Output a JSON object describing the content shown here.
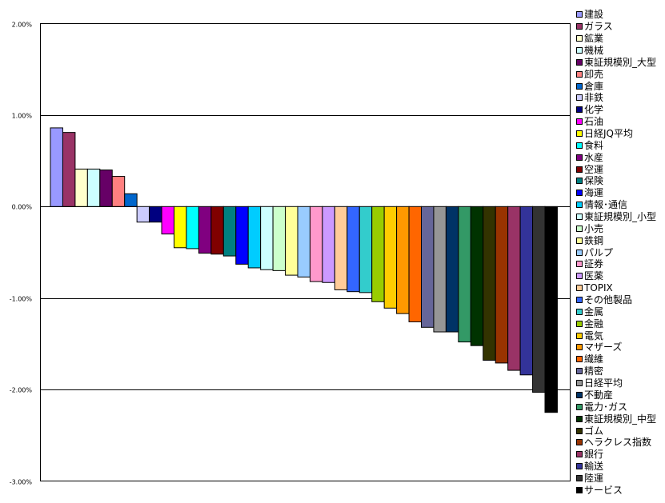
{
  "chart_data": {
    "type": "bar",
    "title": "",
    "xlabel": "",
    "ylabel": "",
    "ylim": [
      -3,
      2
    ],
    "yticks": [
      "2.00%",
      "1.00%",
      "0.00%",
      "-1.00%",
      "-2.00%",
      "-3.00%"
    ],
    "ytick_values": [
      2,
      1,
      0,
      -1,
      -2,
      -3
    ],
    "grid": true,
    "legend_position": "right",
    "categories": [
      "建設",
      "ガラス",
      "鉱業",
      "機械",
      "東証規模別_大型",
      "卸売",
      "倉庫",
      "非鉄",
      "化学",
      "石油",
      "日経JQ平均",
      "食料",
      "水産",
      "空運",
      "保険",
      "海運",
      "情報･通信",
      "東証規模別_小型",
      "小売",
      "鉄鋼",
      "パルプ",
      "証券",
      "医薬",
      "TOPIX",
      "その他製品",
      "金属",
      "金融",
      "電気",
      "マザーズ",
      "繊維",
      "精密",
      "日経平均",
      "不動産",
      "電力･ガス",
      "東証規模別_中型",
      "ゴム",
      "ヘラクレス指数",
      "銀行",
      "輸送",
      "陸運",
      "サービス"
    ],
    "values": [
      0.86,
      0.81,
      0.41,
      0.41,
      0.4,
      0.33,
      0.14,
      -0.17,
      -0.17,
      -0.3,
      -0.45,
      -0.46,
      -0.51,
      -0.52,
      -0.54,
      -0.63,
      -0.67,
      -0.69,
      -0.7,
      -0.75,
      -0.77,
      -0.82,
      -0.83,
      -0.91,
      -0.93,
      -0.94,
      -1.04,
      -1.11,
      -1.17,
      -1.26,
      -1.32,
      -1.37,
      -1.37,
      -1.48,
      -1.52,
      -1.68,
      -1.71,
      -1.79,
      -1.84,
      -2.03,
      -2.25
    ],
    "colors": [
      "#9999FF",
      "#993366",
      "#FFFFCC",
      "#CCFFFF",
      "#660066",
      "#FF8080",
      "#0066CC",
      "#CCCCFF",
      "#000080",
      "#FF00FF",
      "#FFFF00",
      "#00FFFF",
      "#800080",
      "#800000",
      "#008080",
      "#0000FF",
      "#00CCFF",
      "#CCFFFF",
      "#CCFFCC",
      "#FFFF99",
      "#99CCFF",
      "#FF99CC",
      "#CC99FF",
      "#FFCC99",
      "#3366FF",
      "#33CCCC",
      "#99CC00",
      "#FFCC00",
      "#FF9900",
      "#FF6600",
      "#666699",
      "#969696",
      "#003366",
      "#339966",
      "#003300",
      "#333300",
      "#993300",
      "#993366",
      "#333399",
      "#333333",
      "#000000"
    ]
  }
}
